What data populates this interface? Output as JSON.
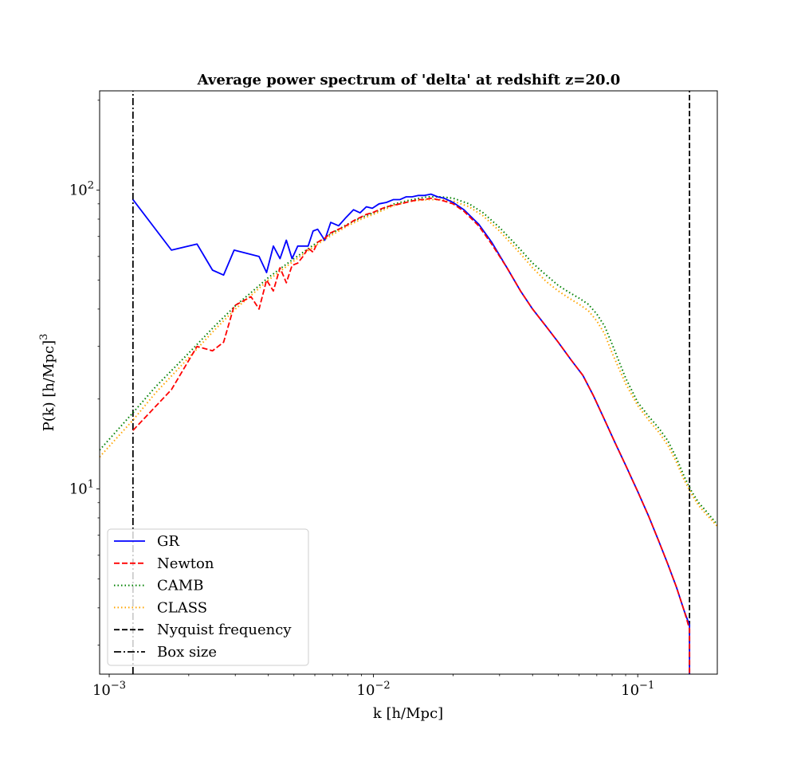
{
  "chart_data": {
    "type": "line",
    "title": "Average power spectrum of 'delta' at redshift z=20.0",
    "xlabel": "k [h/Mpc]",
    "ylabel": "P(k) [h/Mpc]",
    "ylabel_exponent": "3",
    "xscale": "log",
    "yscale": "log",
    "xlim": [
      0.00092,
      0.2
    ],
    "ylim": [
      2.4,
      215
    ],
    "x_ticks": [
      {
        "value": 0.001,
        "base": "10",
        "exp": "−3"
      },
      {
        "value": 0.01,
        "base": "10",
        "exp": "−2"
      },
      {
        "value": 0.1,
        "base": "10",
        "exp": "−1"
      }
    ],
    "y_ticks": [
      {
        "value": 10,
        "base": "10",
        "exp": "1"
      },
      {
        "value": 100,
        "base": "10",
        "exp": "2"
      }
    ],
    "grid": false,
    "legend_position": "lower-left",
    "series": [
      {
        "name": "GR",
        "color": "#0000ff",
        "dash": "solid",
        "x": [
          0.00123,
          0.00172,
          0.00215,
          0.00246,
          0.00271,
          0.00297,
          0.00369,
          0.00394,
          0.00418,
          0.00443,
          0.00468,
          0.00492,
          0.00517,
          0.00566,
          0.00591,
          0.00615,
          0.00654,
          0.00689,
          0.00738,
          0.00787,
          0.0084,
          0.0089,
          0.0094,
          0.0099,
          0.0105,
          0.0112,
          0.0119,
          0.0126,
          0.0133,
          0.014,
          0.0148,
          0.0156,
          0.0165,
          0.0175,
          0.0185,
          0.02,
          0.022,
          0.025,
          0.028,
          0.032,
          0.036,
          0.04,
          0.045,
          0.05,
          0.056,
          0.062,
          0.068,
          0.075,
          0.082,
          0.09,
          0.1,
          0.11,
          0.12,
          0.13,
          0.14,
          0.15,
          0.157,
          0.157
        ],
        "y": [
          93,
          63,
          66,
          54,
          52,
          63,
          60,
          53,
          65,
          59,
          68,
          59,
          65,
          65,
          73,
          74,
          68,
          78,
          76,
          81,
          86,
          84,
          88,
          87,
          90,
          91,
          93,
          93,
          95,
          95,
          96,
          96,
          97,
          95,
          94,
          91,
          86,
          77,
          67,
          55,
          46,
          40,
          35,
          31,
          27,
          24,
          20.5,
          17,
          14.3,
          12,
          9.8,
          8.1,
          6.7,
          5.6,
          4.7,
          3.9,
          3.5,
          2.4
        ]
      },
      {
        "name": "Newton",
        "color": "#ff0000",
        "dash": "dashed",
        "x": [
          0.00123,
          0.00172,
          0.00215,
          0.00246,
          0.00271,
          0.00297,
          0.00344,
          0.00369,
          0.00394,
          0.00418,
          0.00443,
          0.00468,
          0.00492,
          0.00517,
          0.00541,
          0.00566,
          0.00591,
          0.00615,
          0.00654,
          0.00689,
          0.00738,
          0.00787,
          0.0084,
          0.0089,
          0.0094,
          0.0099,
          0.0105,
          0.0112,
          0.0119,
          0.0126,
          0.0133,
          0.014,
          0.0148,
          0.0156,
          0.0165,
          0.0175,
          0.0185,
          0.02,
          0.022,
          0.025,
          0.028,
          0.032,
          0.036,
          0.04,
          0.045,
          0.05,
          0.056,
          0.062,
          0.068,
          0.075,
          0.082,
          0.09,
          0.1,
          0.11,
          0.12,
          0.13,
          0.14,
          0.15,
          0.157,
          0.157
        ],
        "y": [
          15.7,
          21.5,
          30,
          29,
          31,
          41,
          44,
          40,
          50,
          46,
          55,
          49,
          56,
          57,
          60,
          64,
          62,
          67,
          69,
          72,
          74,
          76,
          79,
          81,
          83,
          84,
          86,
          88,
          89,
          90,
          91,
          92,
          93,
          93,
          94,
          93,
          92,
          90,
          85,
          76,
          66,
          55,
          46,
          40,
          35,
          31,
          27,
          24,
          20.5,
          17,
          14.3,
          12,
          9.8,
          8.1,
          6.7,
          5.6,
          4.7,
          3.9,
          3.4,
          2.4
        ]
      },
      {
        "name": "CAMB",
        "color": "#008000",
        "dash": "dotted",
        "x": [
          0.00092,
          0.00123,
          0.0015,
          0.002,
          0.0025,
          0.003,
          0.0035,
          0.004,
          0.005,
          0.006,
          0.007,
          0.008,
          0.009,
          0.01,
          0.012,
          0.014,
          0.016,
          0.018,
          0.02,
          0.023,
          0.026,
          0.03,
          0.035,
          0.04,
          0.045,
          0.05,
          0.055,
          0.06,
          0.065,
          0.07,
          0.075,
          0.08,
          0.09,
          0.1,
          0.11,
          0.12,
          0.13,
          0.14,
          0.15,
          0.16,
          0.17,
          0.18,
          0.2
        ],
        "y": [
          13.5,
          18,
          22,
          28.5,
          35,
          41,
          46,
          51,
          59,
          66,
          72,
          77,
          81,
          84,
          90,
          93,
          95,
          95,
          94,
          90,
          84,
          75,
          65,
          57,
          52,
          48,
          45.5,
          43.5,
          41.5,
          38.5,
          35,
          30.5,
          23.5,
          19.5,
          17.5,
          16,
          14.5,
          12.7,
          11,
          9.8,
          9,
          8.5,
          7.6
        ]
      },
      {
        "name": "CLASS",
        "color": "#ffa500",
        "dash": "dotted",
        "x": [
          0.00092,
          0.00123,
          0.0015,
          0.002,
          0.0025,
          0.003,
          0.0035,
          0.004,
          0.005,
          0.006,
          0.007,
          0.008,
          0.009,
          0.01,
          0.012,
          0.014,
          0.016,
          0.018,
          0.02,
          0.023,
          0.026,
          0.03,
          0.035,
          0.04,
          0.045,
          0.05,
          0.055,
          0.06,
          0.065,
          0.07,
          0.075,
          0.08,
          0.09,
          0.1,
          0.11,
          0.12,
          0.13,
          0.14,
          0.15,
          0.16,
          0.17,
          0.18,
          0.2
        ],
        "y": [
          12.8,
          17,
          21,
          27.5,
          34,
          40,
          45,
          50,
          58,
          65,
          71,
          76,
          80,
          83,
          89,
          92,
          93,
          93,
          92,
          88,
          82,
          73,
          63,
          55,
          49.5,
          46,
          43.5,
          41.5,
          39.5,
          36.5,
          33,
          28.5,
          22.5,
          19,
          17,
          15.5,
          14,
          12.3,
          10.7,
          9.6,
          8.8,
          8.3,
          7.5
        ]
      },
      {
        "name": "Nyquist frequency",
        "color": "#000000",
        "dash": "dashed",
        "x": [
          0.157,
          0.157
        ],
        "y": [
          2.4,
          215
        ]
      },
      {
        "name": "Box size",
        "color": "#000000",
        "dash": "dashdot",
        "x": [
          0.00123,
          0.00123
        ],
        "y": [
          2.4,
          215
        ]
      }
    ]
  }
}
